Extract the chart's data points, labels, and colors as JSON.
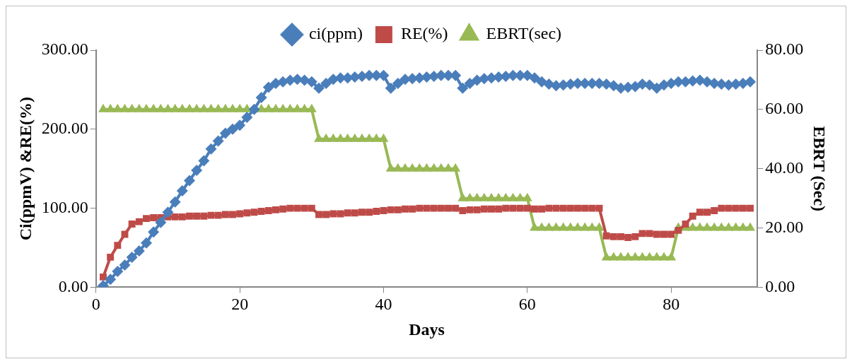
{
  "chart_data": {
    "type": "line",
    "xlabel": "Days",
    "ylabel": "Ci(ppmV) &RE(%)",
    "y2label": "EBRT (Sec)",
    "legend": "top",
    "grid": false,
    "x": [
      1,
      2,
      3,
      4,
      5,
      6,
      7,
      8,
      9,
      10,
      11,
      12,
      13,
      14,
      15,
      16,
      17,
      18,
      19,
      20,
      21,
      22,
      23,
      24,
      25,
      26,
      27,
      28,
      29,
      30,
      31,
      32,
      33,
      34,
      35,
      36,
      37,
      38,
      39,
      40,
      41,
      42,
      43,
      44,
      45,
      46,
      47,
      48,
      49,
      50,
      51,
      52,
      53,
      54,
      55,
      56,
      57,
      58,
      59,
      60,
      61,
      62,
      63,
      64,
      65,
      66,
      67,
      68,
      69,
      70,
      71,
      72,
      73,
      74,
      75,
      76,
      77,
      78,
      79,
      80,
      81,
      82,
      83,
      84,
      85,
      86,
      87,
      88,
      89,
      90,
      91
    ],
    "xlim": [
      0,
      92
    ],
    "xticks": [
      0,
      20,
      40,
      60,
      80
    ],
    "ylim": [
      0,
      300
    ],
    "yticks": [
      {
        "value": 0,
        "label": "0.00"
      },
      {
        "value": 100,
        "label": "100.00"
      },
      {
        "value": 200,
        "label": "200.00"
      },
      {
        "value": 300,
        "label": "300.00"
      }
    ],
    "y2lim": [
      0,
      80
    ],
    "y2ticks": [
      {
        "value": 0,
        "label": "0.00"
      },
      {
        "value": 20,
        "label": "20.00"
      },
      {
        "value": 40,
        "label": "40.00"
      },
      {
        "value": 60,
        "label": "60.00"
      },
      {
        "value": 80,
        "label": "80.00"
      }
    ],
    "series": [
      {
        "name": "ci(ppm)",
        "color": "#4a7ebb",
        "marker": "diamond",
        "values": [
          2,
          10,
          20,
          28,
          38,
          46,
          56,
          70,
          82,
          95,
          108,
          122,
          135,
          148,
          160,
          175,
          185,
          195,
          200,
          205,
          215,
          225,
          240,
          253,
          258,
          260,
          262,
          263,
          262,
          260,
          252,
          258,
          263,
          265,
          265,
          266,
          267,
          268,
          268,
          268,
          252,
          258,
          263,
          264,
          265,
          266,
          267,
          268,
          268,
          268,
          252,
          258,
          262,
          264,
          265,
          266,
          267,
          268,
          268,
          268,
          265,
          260,
          257,
          255,
          256,
          257,
          258,
          258,
          258,
          258,
          257,
          255,
          252,
          253,
          254,
          257,
          256,
          252,
          256,
          258,
          260,
          260,
          261,
          262,
          260,
          258,
          257,
          256,
          257,
          258,
          260
        ]
      },
      {
        "name": "RE(%)",
        "color": "#be4b48",
        "marker": "square",
        "values": [
          13,
          38,
          53,
          67,
          80,
          83,
          87,
          88,
          88,
          89,
          89,
          89,
          90,
          90,
          90,
          91,
          91,
          92,
          92,
          93,
          94,
          95,
          96,
          97,
          98,
          99,
          100,
          100,
          100,
          100,
          92,
          92,
          93,
          93,
          94,
          94,
          95,
          95,
          96,
          97,
          98,
          98,
          99,
          99,
          100,
          100,
          100,
          100,
          100,
          100,
          97,
          98,
          98,
          99,
          99,
          99,
          100,
          100,
          100,
          100,
          99,
          99,
          100,
          100,
          100,
          100,
          100,
          100,
          100,
          100,
          65,
          64,
          64,
          63,
          64,
          68,
          68,
          67,
          67,
          67,
          72,
          80,
          90,
          95,
          95,
          97,
          100,
          100,
          100,
          100,
          100
        ]
      },
      {
        "name": "EBRT(sec)",
        "color": "#98b954",
        "marker": "triangle",
        "axis": "y2",
        "values": [
          60,
          60,
          60,
          60,
          60,
          60,
          60,
          60,
          60,
          60,
          60,
          60,
          60,
          60,
          60,
          60,
          60,
          60,
          60,
          60,
          60,
          60,
          60,
          60,
          60,
          60,
          60,
          60,
          60,
          60,
          50,
          50,
          50,
          50,
          50,
          50,
          50,
          50,
          50,
          50,
          40,
          40,
          40,
          40,
          40,
          40,
          40,
          40,
          40,
          40,
          30,
          30,
          30,
          30,
          30,
          30,
          30,
          30,
          30,
          30,
          20,
          20,
          20,
          20,
          20,
          20,
          20,
          20,
          20,
          20,
          10,
          10,
          10,
          10,
          10,
          10,
          10,
          10,
          10,
          10,
          20,
          20,
          20,
          20,
          20,
          20,
          20,
          20,
          20,
          20,
          20
        ]
      }
    ]
  }
}
